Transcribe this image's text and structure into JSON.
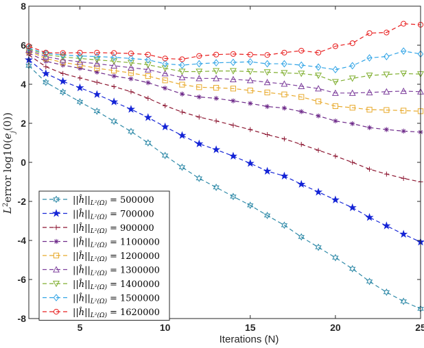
{
  "chart_data": {
    "type": "line",
    "title": "",
    "xlabel": "Iterations (N)",
    "ylabel": "L²error log10(e_j(0))",
    "ylabel_parts": {
      "prefix": "L",
      "sup": "2",
      "mid": "error log10(",
      "var": "e",
      "sub": "j",
      "suffix": "(0))"
    },
    "xlim": [
      2,
      25
    ],
    "ylim": [
      -8,
      8
    ],
    "xticks": [
      5,
      10,
      15,
      20,
      25
    ],
    "yticks": [
      -8,
      -6,
      -4,
      -2,
      0,
      2,
      4,
      6,
      8
    ],
    "grid": false,
    "legend_position": "bottom-left",
    "x": [
      2,
      3,
      4,
      5,
      6,
      7,
      8,
      9,
      10,
      11,
      12,
      13,
      14,
      15,
      16,
      17,
      18,
      19,
      20,
      21,
      22,
      23,
      24,
      25
    ],
    "series": [
      {
        "name": "||ĥ||L²(Ω) = 500000",
        "legend_value": "= 500000",
        "color": "#2f8aa8",
        "marker": "hexagram",
        "values": [
          4.95,
          4.1,
          3.6,
          3.1,
          2.62,
          2.1,
          1.58,
          1.0,
          0.35,
          -0.25,
          -0.82,
          -1.28,
          -1.75,
          -2.2,
          -2.72,
          -3.22,
          -3.82,
          -4.35,
          -4.88,
          -5.45,
          -6.1,
          -6.65,
          -7.12,
          -7.5
        ]
      },
      {
        "name": "||ĥ||L²(Ω) = 700000",
        "legend_value": "= 700000",
        "color": "#1424d6",
        "marker": "star",
        "values": [
          5.25,
          4.55,
          4.15,
          3.82,
          3.48,
          3.1,
          2.72,
          2.3,
          1.82,
          1.38,
          0.95,
          0.65,
          0.32,
          -0.05,
          -0.45,
          -0.7,
          -1.12,
          -1.52,
          -1.92,
          -2.32,
          -2.82,
          -3.25,
          -3.68,
          -4.08
        ]
      },
      {
        "name": "||ĥ||L²(Ω) = 900000",
        "legend_value": "= 900000",
        "color": "#8c1530",
        "marker": "plus",
        "values": [
          5.5,
          4.9,
          4.55,
          4.32,
          4.1,
          3.88,
          3.62,
          3.28,
          2.9,
          2.58,
          2.32,
          2.12,
          1.9,
          1.68,
          1.42,
          1.2,
          0.92,
          0.62,
          0.32,
          0.0,
          -0.35,
          -0.6,
          -0.82,
          -1.0
        ]
      },
      {
        "name": "||ĥ||L²(Ω) = 1100000",
        "legend_value": "= 1100000",
        "color": "#6e2a8a",
        "marker": "asterisk",
        "values": [
          5.6,
          5.18,
          4.98,
          4.82,
          4.62,
          4.42,
          4.28,
          4.08,
          3.8,
          3.5,
          3.35,
          3.28,
          3.15,
          3.02,
          2.86,
          2.78,
          2.6,
          2.38,
          2.12,
          1.98,
          1.78,
          1.68,
          1.6,
          1.55
        ]
      },
      {
        "name": "||ĥ||L²(Ω) = 1200000",
        "legend_value": "= 1200000",
        "color": "#e8a92a",
        "marker": "square",
        "values": [
          5.7,
          5.32,
          5.12,
          4.98,
          4.82,
          4.7,
          4.58,
          4.42,
          4.2,
          3.98,
          3.85,
          3.82,
          3.78,
          3.68,
          3.58,
          3.48,
          3.35,
          3.12,
          2.88,
          2.8,
          2.7,
          2.68,
          2.65,
          2.62
        ]
      },
      {
        "name": "||ĥ||L²(Ω) = 1300000",
        "legend_value": "= 1300000",
        "color": "#7d3f9c",
        "marker": "triangle",
        "values": [
          5.75,
          5.42,
          5.25,
          5.15,
          5.05,
          4.95,
          4.85,
          4.75,
          4.55,
          4.35,
          4.3,
          4.3,
          4.25,
          4.2,
          4.1,
          4.02,
          3.9,
          3.78,
          3.55,
          3.55,
          3.58,
          3.62,
          3.65,
          3.62
        ]
      },
      {
        "name": "||ĥ||L²(Ω) = 1400000",
        "legend_value": "= 1400000",
        "color": "#7fae2e",
        "marker": "triangle-down",
        "values": [
          5.8,
          5.52,
          5.4,
          5.32,
          5.25,
          5.18,
          5.1,
          5.0,
          4.82,
          4.65,
          4.65,
          4.68,
          4.68,
          4.65,
          4.62,
          4.58,
          4.55,
          4.45,
          4.12,
          4.3,
          4.45,
          4.5,
          4.55,
          4.52
        ]
      },
      {
        "name": "||ĥ||L²(Ω) = 1500000",
        "legend_value": "= 1500000",
        "color": "#2ea3e6",
        "marker": "diamond",
        "values": [
          5.85,
          5.58,
          5.5,
          5.45,
          5.42,
          5.38,
          5.32,
          5.25,
          5.05,
          4.98,
          5.05,
          5.1,
          5.12,
          5.15,
          5.05,
          5.05,
          4.98,
          4.88,
          4.75,
          4.95,
          5.35,
          5.42,
          5.7,
          5.55
        ]
      },
      {
        "name": "||ĥ||L²(Ω) = 1620000",
        "legend_value": "= 1620000",
        "color": "#e81e1e",
        "marker": "circle",
        "values": [
          5.95,
          5.62,
          5.6,
          5.62,
          5.62,
          5.6,
          5.58,
          5.52,
          5.32,
          5.28,
          5.45,
          5.52,
          5.55,
          5.52,
          5.5,
          5.62,
          5.72,
          5.62,
          5.95,
          6.1,
          6.62,
          6.65,
          7.1,
          7.05
        ]
      }
    ]
  }
}
